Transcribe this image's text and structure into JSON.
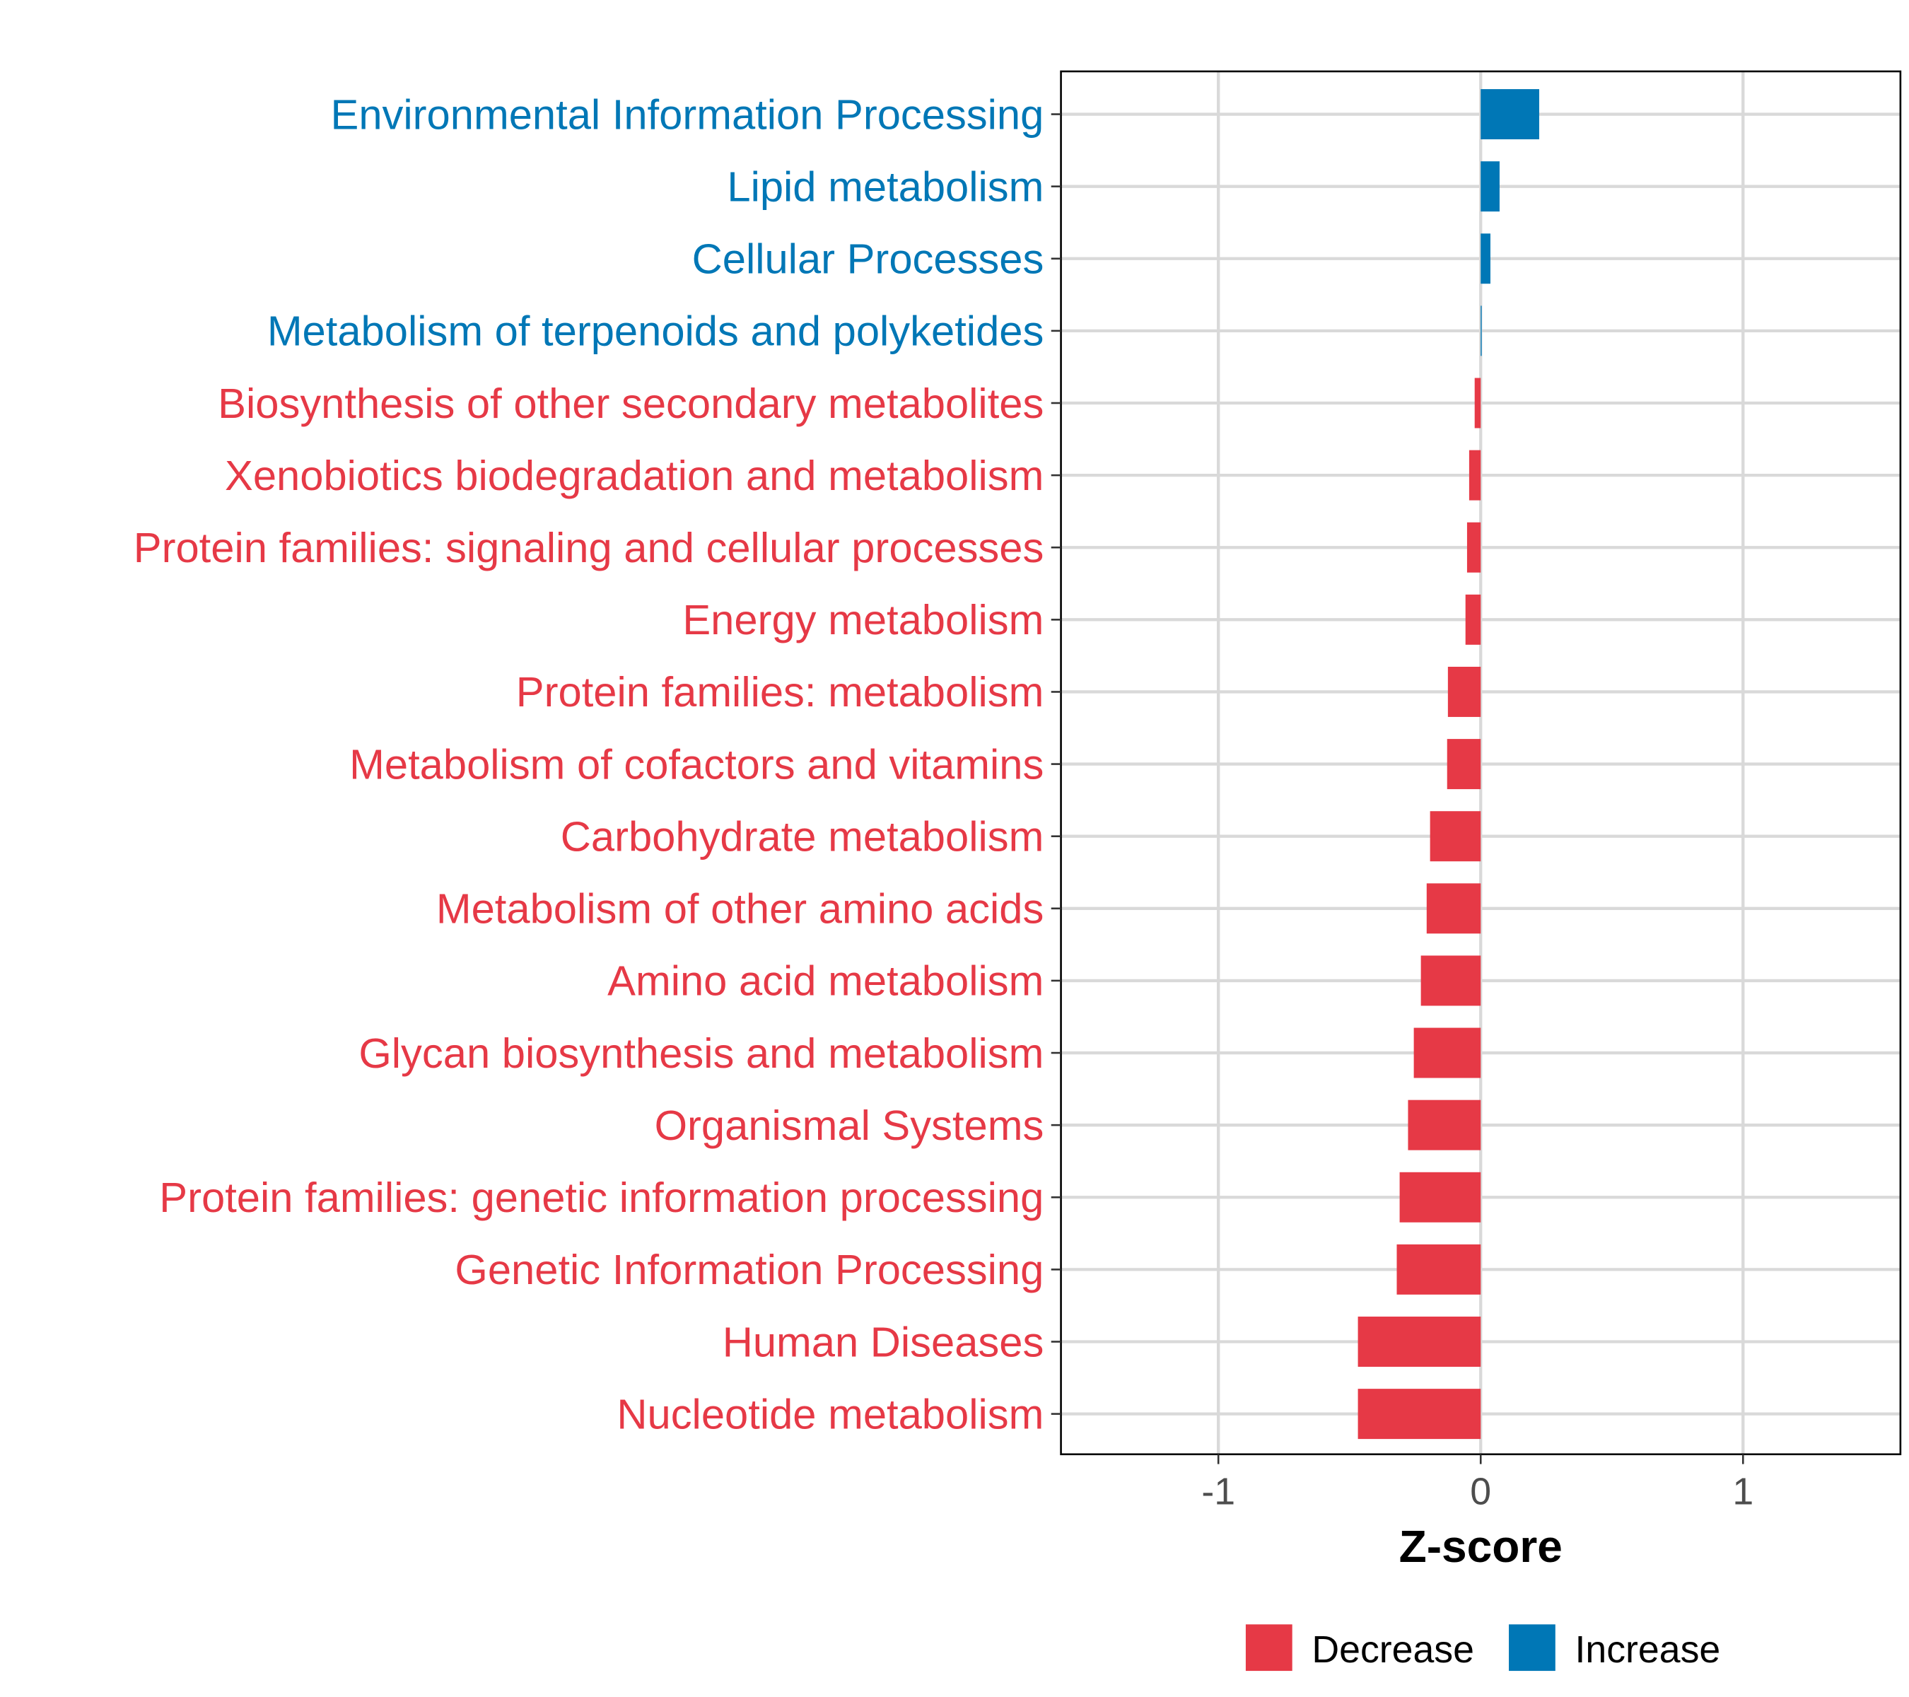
{
  "colors": {
    "Decrease": "#E63946",
    "Increase": "#0077B6",
    "grid": "#D9D9D9",
    "axis": "#000000"
  },
  "chart_data": {
    "type": "bar",
    "orientation": "horizontal",
    "title": "",
    "xlabel": "Z-score",
    "ylabel": "",
    "xlim": [
      -1.6,
      1.6
    ],
    "xticks": [
      -1,
      0,
      1
    ],
    "xtick_labels": [
      "-1",
      "0",
      "1"
    ],
    "grid": true,
    "legend": {
      "placement": "bottom",
      "entries": [
        "Decrease",
        "Increase"
      ]
    },
    "categories": [
      "Environmental Information Processing",
      "Lipid metabolism",
      "Cellular Processes",
      "Metabolism of terpenoids and polyketides",
      "Biosynthesis of other secondary metabolites",
      "Xenobiotics biodegradation and metabolism",
      "Protein families: signaling and cellular processes",
      "Energy metabolism",
      "Protein families: metabolism",
      "Metabolism of cofactors and vitamins",
      "Carbohydrate metabolism",
      "Metabolism of other amino acids",
      "Amino acid metabolism",
      "Glycan biosynthesis and metabolism",
      "Organismal Systems",
      "Protein families: genetic information processing",
      "Genetic Information Processing",
      "Human Diseases",
      "Nucleotide metabolism"
    ],
    "values": [
      0.223,
      0.072,
      0.037,
      0.003,
      -0.023,
      -0.044,
      -0.052,
      -0.058,
      -0.125,
      -0.128,
      -0.193,
      -0.206,
      -0.228,
      -0.255,
      -0.277,
      -0.309,
      -0.32,
      -0.468,
      -0.468
    ],
    "groups": [
      "Increase",
      "Increase",
      "Increase",
      "Increase",
      "Decrease",
      "Decrease",
      "Decrease",
      "Decrease",
      "Decrease",
      "Decrease",
      "Decrease",
      "Decrease",
      "Decrease",
      "Decrease",
      "Decrease",
      "Decrease",
      "Decrease",
      "Decrease",
      "Decrease"
    ]
  }
}
